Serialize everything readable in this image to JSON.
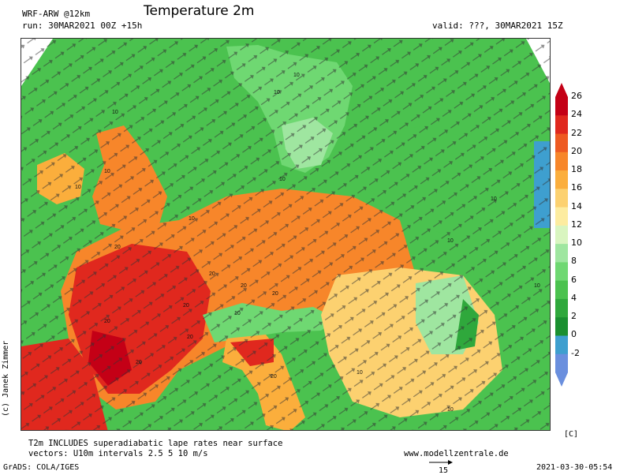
{
  "header": {
    "title": "Temperature 2m",
    "model": "WRF-ARW @12km",
    "run": "run: 30MAR2021 00Z +15h",
    "valid": "valid: ???, 30MAR2021 15Z"
  },
  "credit": "(c) Janek Zimmer",
  "footer": {
    "note_line1": "T2m INCLUDES superadiabatic lape rates near surface",
    "note_line2": "vectors: U10m intervals 2.5 5 10 m/s",
    "website": "www.modellzentrale.de",
    "software": "GrADS: COLA/IGES",
    "timestamp": "2021-03-30-05:54",
    "reference_vector_label": "15"
  },
  "legend": {
    "unit": "[C]",
    "labels": [
      "26",
      "24",
      "22",
      "20",
      "18",
      "16",
      "14",
      "12",
      "10",
      "8",
      "6",
      "4",
      "2",
      "0",
      "-2"
    ],
    "colors": [
      "#c40016",
      "#e0281e",
      "#ee5a22",
      "#f7862a",
      "#fbae3c",
      "#fcd170",
      "#fdeca0",
      "#d9f5c0",
      "#9fe6a0",
      "#6fd872",
      "#4bc24f",
      "#2fa83c",
      "#1a8f30",
      "#3e9fcf",
      "#6a8fde"
    ]
  },
  "map": {
    "contour_labels": [
      "10",
      "10",
      "10",
      "10",
      "10",
      "10",
      "10",
      "10",
      "10",
      "20",
      "20",
      "20",
      "20",
      "20",
      "20",
      "20",
      "20",
      "20",
      "10",
      "10",
      "10",
      "10"
    ]
  },
  "colors": {
    "sea": "#4bc24f",
    "warm": "#f7862a",
    "hot": "#e0281e",
    "arrow": "#333333"
  }
}
